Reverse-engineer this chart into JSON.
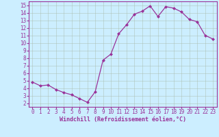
{
  "x": [
    0,
    1,
    2,
    3,
    4,
    5,
    6,
    7,
    8,
    9,
    10,
    11,
    12,
    13,
    14,
    15,
    16,
    17,
    18,
    19,
    20,
    21,
    22,
    23
  ],
  "y": [
    4.8,
    4.3,
    4.4,
    3.8,
    3.4,
    3.1,
    2.6,
    2.1,
    3.5,
    7.7,
    8.5,
    11.2,
    12.4,
    13.8,
    14.2,
    14.9,
    13.5,
    14.8,
    14.6,
    14.1,
    13.1,
    12.8,
    11.0,
    10.5
  ],
  "line_color": "#993399",
  "marker": "D",
  "markersize": 2.0,
  "linewidth": 0.9,
  "bg_color": "#cceeff",
  "grid_color": "#aabbaa",
  "axis_color": "#993399",
  "xlabel": "Windchill (Refroidissement éolien,°C)",
  "xlabel_fontsize": 6.0,
  "tick_fontsize": 5.5,
  "xlim": [
    -0.5,
    23.5
  ],
  "ylim": [
    1.5,
    15.5
  ],
  "yticks": [
    2,
    3,
    4,
    5,
    6,
    7,
    8,
    9,
    10,
    11,
    12,
    13,
    14,
    15
  ],
  "xticks": [
    0,
    1,
    2,
    3,
    4,
    5,
    6,
    7,
    8,
    9,
    10,
    11,
    12,
    13,
    14,
    15,
    16,
    17,
    18,
    19,
    20,
    21,
    22,
    23
  ]
}
